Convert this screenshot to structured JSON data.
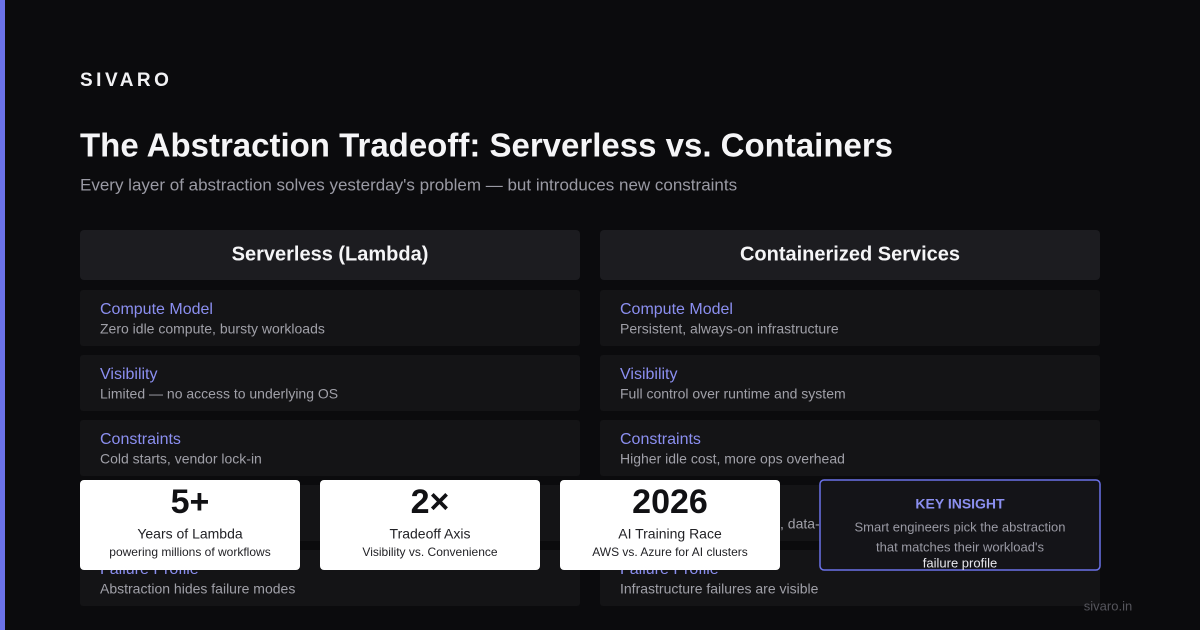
{
  "brand": "SIVARO",
  "title": "The Abstraction Tradeoff: Serverless vs. Containers",
  "subtitle": "Every layer of abstraction solves yesterday's problem — but introduces new constraints",
  "columns": [
    {
      "heading": "Serverless (Lambda)",
      "rows": [
        {
          "label": "Compute Model",
          "text": "Zero idle compute, bursty workloads"
        },
        {
          "label": "Visibility",
          "text": "Limited — no access to underlying OS"
        },
        {
          "label": "Constraints",
          "text": "Cold starts, vendor lock-in"
        },
        {
          "label": "Failure Profile",
          "text": "Abstraction hides failure modes"
        }
      ]
    },
    {
      "heading": "Containerized Services",
      "rows": [
        {
          "label": "Compute Model",
          "text": "Persistent, always-on infrastructure"
        },
        {
          "label": "Visibility",
          "text": "Full control over runtime and system"
        },
        {
          "label": "Constraints",
          "text": "Higher idle cost, more ops overhead"
        },
        {
          "label": "Failure Profile",
          "text": "Infrastructure failures are visible"
        }
      ],
      "fragment": ", data-"
    }
  ],
  "stats": [
    {
      "value": "5+",
      "label": "Years of Lambda",
      "note": "powering millions of workflows"
    },
    {
      "value": "2×",
      "label": "Tradeoff Axis",
      "note": "Visibility vs. Convenience"
    },
    {
      "value": "2026",
      "label": "AI Training Race",
      "note": "AWS vs. Azure for AI clusters"
    }
  ],
  "insight": {
    "heading": "KEY INSIGHT",
    "lines": [
      "Smart engineers pick the abstraction",
      "that matches their workload's"
    ],
    "emphasis": "failure profile"
  },
  "footer": "sivaro.in"
}
